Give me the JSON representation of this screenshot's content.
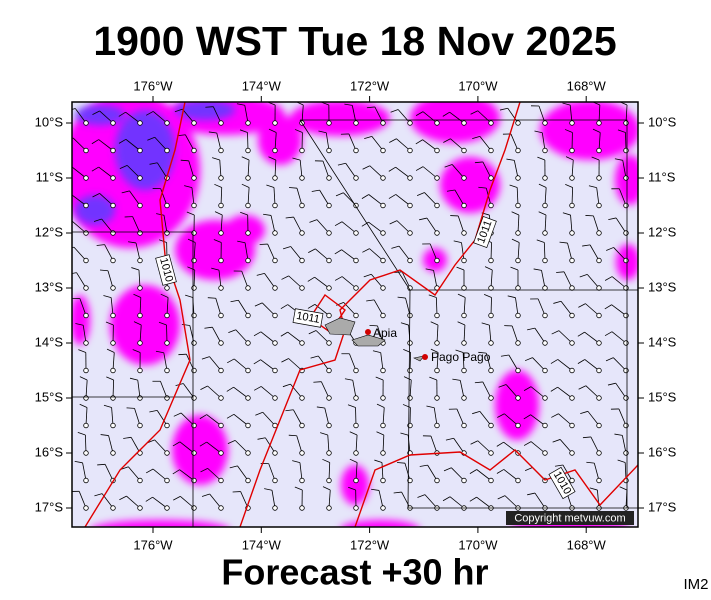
{
  "header": {
    "title": "1900 WST Tue 18 Nov 2025"
  },
  "map": {
    "lon_labels": [
      "176°W",
      "174°W",
      "172°W",
      "170°W",
      "168°W"
    ],
    "lat_labels": [
      "10°S",
      "11°S",
      "12°S",
      "13°S",
      "14°S",
      "15°S",
      "16°S",
      "17°S"
    ],
    "places": [
      "Apia",
      "Pago Pago"
    ],
    "isobar_labels": [
      "1010",
      "1011",
      "1011",
      "1010"
    ],
    "copyright": "Copyright metvuw.com"
  },
  "footer": {
    "forecast": "Forecast +30 hr",
    "code": "IM2"
  }
}
